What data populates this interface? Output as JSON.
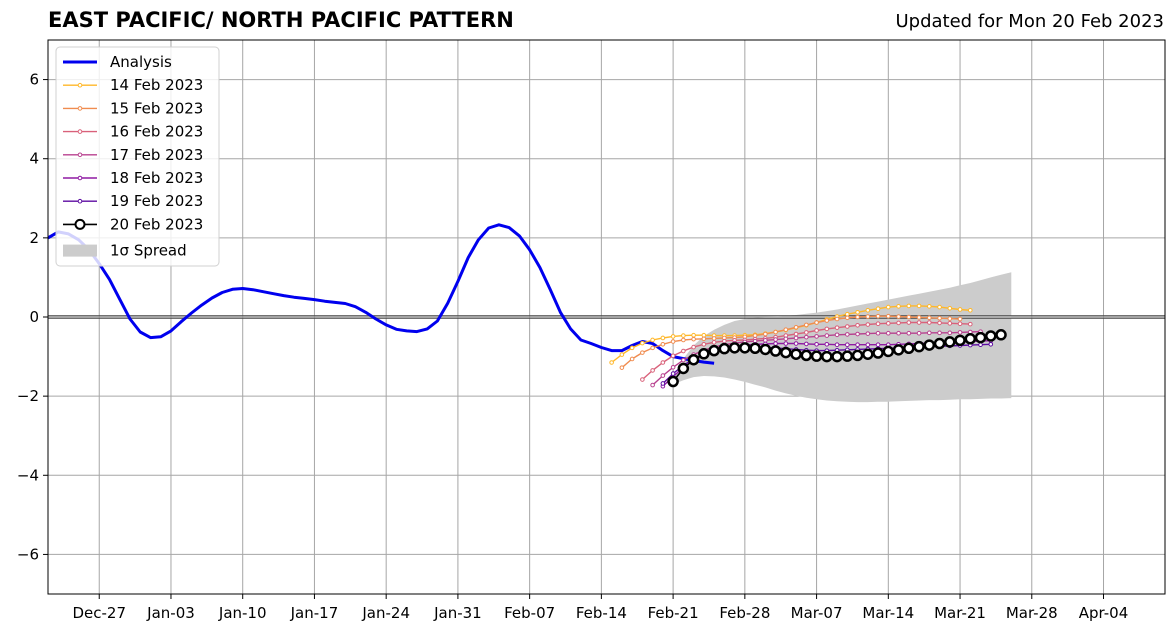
{
  "header": {
    "title": "EAST PACIFIC/ NORTH PACIFIC PATTERN",
    "updated": "Updated for Mon 20 Feb 2023"
  },
  "chart_data": {
    "type": "line",
    "title": "EAST PACIFIC/ NORTH PACIFIC PATTERN",
    "xlim": [
      "2022-12-22",
      "2023-04-10"
    ],
    "ylim": [
      -7,
      7
    ],
    "yticks": [
      -6,
      -4,
      -2,
      0,
      2,
      4,
      6
    ],
    "ytick_labels": [
      "−6",
      "−4",
      "−2",
      "0",
      "2",
      "4",
      "6"
    ],
    "xticks": [
      "2022-12-27",
      "2023-01-03",
      "2023-01-10",
      "2023-01-17",
      "2023-01-24",
      "2023-01-31",
      "2023-02-07",
      "2023-02-14",
      "2023-02-21",
      "2023-02-28",
      "2023-03-07",
      "2023-03-14",
      "2023-03-21",
      "2023-03-28",
      "2023-04-04"
    ],
    "xtick_labels": [
      "Dec-27",
      "Jan-03",
      "Jan-10",
      "Jan-17",
      "Jan-24",
      "Jan-31",
      "Feb-07",
      "Feb-14",
      "Feb-21",
      "Feb-28",
      "Mar-07",
      "Mar-14",
      "Mar-21",
      "Mar-28",
      "Apr-04"
    ],
    "grid": true,
    "zero_line": true,
    "legend_position": "top-left",
    "colors": {
      "analysis": "#0000ee",
      "f14": "#ffb728",
      "f15": "#f08c4f",
      "f16": "#d9617a",
      "f17": "#b8418f",
      "f18": "#8f1aa3",
      "f19": "#5b0aa0",
      "f20": "#000000",
      "spread": "#cccccc"
    },
    "analysis": {
      "name": "Analysis",
      "start": "2022-12-22",
      "values": [
        2.0,
        2.15,
        2.1,
        1.95,
        1.7,
        1.35,
        0.95,
        0.45,
        -0.05,
        -0.38,
        -0.52,
        -0.5,
        -0.35,
        -0.12,
        0.1,
        0.3,
        0.48,
        0.62,
        0.7,
        0.72,
        0.69,
        0.64,
        0.59,
        0.54,
        0.5,
        0.47,
        0.44,
        0.4,
        0.37,
        0.34,
        0.26,
        0.12,
        -0.05,
        -0.2,
        -0.31,
        -0.35,
        -0.37,
        -0.3,
        -0.1,
        0.35,
        0.9,
        1.5,
        1.95,
        2.25,
        2.33,
        2.26,
        2.05,
        1.7,
        1.25,
        0.7,
        0.12,
        -0.3,
        -0.58,
        -0.67,
        -0.77,
        -0.85,
        -0.85,
        -0.72,
        -0.62,
        -0.67,
        -0.85,
        -1.0,
        -1.05,
        -1.1,
        -1.14,
        -1.17
      ]
    },
    "forecasts": [
      {
        "name": "14 Feb 2023",
        "start": "2023-02-15",
        "values": [
          -1.15,
          -0.95,
          -0.78,
          -0.66,
          -0.58,
          -0.53,
          -0.49,
          -0.47,
          -0.46,
          -0.46,
          -0.47,
          -0.47,
          -0.47,
          -0.46,
          -0.45,
          -0.42,
          -0.38,
          -0.33,
          -0.27,
          -0.21,
          -0.14,
          -0.06,
          0.01,
          0.07,
          0.12,
          0.17,
          0.21,
          0.25,
          0.27,
          0.28,
          0.28,
          0.27,
          0.25,
          0.22,
          0.19,
          0.17
        ]
      },
      {
        "name": "15 Feb 2023",
        "start": "2023-02-16",
        "values": [
          -1.28,
          -1.06,
          -0.9,
          -0.78,
          -0.69,
          -0.62,
          -0.58,
          -0.56,
          -0.55,
          -0.54,
          -0.53,
          -0.52,
          -0.5,
          -0.47,
          -0.43,
          -0.38,
          -0.32,
          -0.26,
          -0.2,
          -0.14,
          -0.09,
          -0.05,
          -0.02,
          0.0,
          0.01,
          0.02,
          0.02,
          0.01,
          0.0,
          -0.01,
          -0.02,
          -0.03,
          -0.04,
          -0.05
        ]
      },
      {
        "name": "16 Feb 2023",
        "start": "2023-02-18",
        "values": [
          -1.58,
          -1.35,
          -1.15,
          -0.98,
          -0.86,
          -0.76,
          -0.69,
          -0.64,
          -0.61,
          -0.59,
          -0.58,
          -0.56,
          -0.54,
          -0.51,
          -0.47,
          -0.43,
          -0.39,
          -0.34,
          -0.3,
          -0.27,
          -0.24,
          -0.21,
          -0.19,
          -0.17,
          -0.16,
          -0.15,
          -0.14,
          -0.14,
          -0.14,
          -0.15,
          -0.16,
          -0.17,
          -0.18
        ]
      },
      {
        "name": "17 Feb 2023",
        "start": "2023-02-19",
        "values": [
          -1.72,
          -1.48,
          -1.27,
          -1.09,
          -0.95,
          -0.84,
          -0.76,
          -0.7,
          -0.66,
          -0.63,
          -0.61,
          -0.59,
          -0.57,
          -0.55,
          -0.53,
          -0.51,
          -0.49,
          -0.47,
          -0.45,
          -0.44,
          -0.43,
          -0.42,
          -0.41,
          -0.41,
          -0.41,
          -0.41,
          -0.41,
          -0.4,
          -0.4,
          -0.4,
          -0.39,
          -0.38,
          -0.37
        ]
      },
      {
        "name": "18 Feb 2023",
        "start": "2023-02-20",
        "values": [
          -1.75,
          -1.5,
          -1.28,
          -1.1,
          -0.96,
          -0.86,
          -0.79,
          -0.74,
          -0.71,
          -0.69,
          -0.68,
          -0.67,
          -0.67,
          -0.67,
          -0.68,
          -0.69,
          -0.69,
          -0.7,
          -0.7,
          -0.7,
          -0.7,
          -0.7,
          -0.7,
          -0.69,
          -0.68,
          -0.67,
          -0.66,
          -0.65,
          -0.64,
          -0.63,
          -0.62,
          -0.61,
          -0.6
        ]
      },
      {
        "name": "19 Feb 2023",
        "start": "2023-02-20",
        "values": [
          -1.68,
          -1.43,
          -1.22,
          -1.06,
          -0.94,
          -0.85,
          -0.8,
          -0.77,
          -0.76,
          -0.76,
          -0.77,
          -0.78,
          -0.8,
          -0.82,
          -0.84,
          -0.85,
          -0.85,
          -0.84,
          -0.83,
          -0.82,
          -0.81,
          -0.8,
          -0.79,
          -0.78,
          -0.77,
          -0.76,
          -0.75,
          -0.74,
          -0.73,
          -0.72,
          -0.71,
          -0.7,
          -0.69
        ]
      },
      {
        "name": "20 Feb 2023",
        "start": "2023-02-21",
        "values": [
          -1.63,
          -1.3,
          -1.08,
          -0.93,
          -0.85,
          -0.8,
          -0.78,
          -0.78,
          -0.79,
          -0.82,
          -0.86,
          -0.9,
          -0.94,
          -0.97,
          -0.99,
          -1.0,
          -1.0,
          -0.99,
          -0.97,
          -0.94,
          -0.91,
          -0.87,
          -0.83,
          -0.79,
          -0.75,
          -0.71,
          -0.67,
          -0.63,
          -0.59,
          -0.55,
          -0.52,
          -0.48,
          -0.45
        ]
      }
    ],
    "spread": {
      "name": "1σ Spread",
      "start": "2023-02-21",
      "upper": [
        -1.6,
        -1.05,
        -0.72,
        -0.48,
        -0.32,
        -0.2,
        -0.1,
        -0.05,
        -0.02,
        0.0,
        0.01,
        0.03,
        0.05,
        0.08,
        0.11,
        0.15,
        0.19,
        0.24,
        0.29,
        0.34,
        0.39,
        0.44,
        0.49,
        0.54,
        0.59,
        0.64,
        0.69,
        0.74,
        0.8,
        0.86,
        0.93,
        1.0,
        1.07,
        1.13
      ],
      "lower": [
        -1.7,
        -1.6,
        -1.52,
        -1.49,
        -1.5,
        -1.53,
        -1.58,
        -1.64,
        -1.71,
        -1.78,
        -1.86,
        -1.93,
        -1.99,
        -2.04,
        -2.08,
        -2.11,
        -2.13,
        -2.14,
        -2.15,
        -2.15,
        -2.14,
        -2.14,
        -2.13,
        -2.12,
        -2.11,
        -2.1,
        -2.1,
        -2.09,
        -2.08,
        -2.08,
        -2.07,
        -2.06,
        -2.06,
        -2.05
      ]
    }
  }
}
